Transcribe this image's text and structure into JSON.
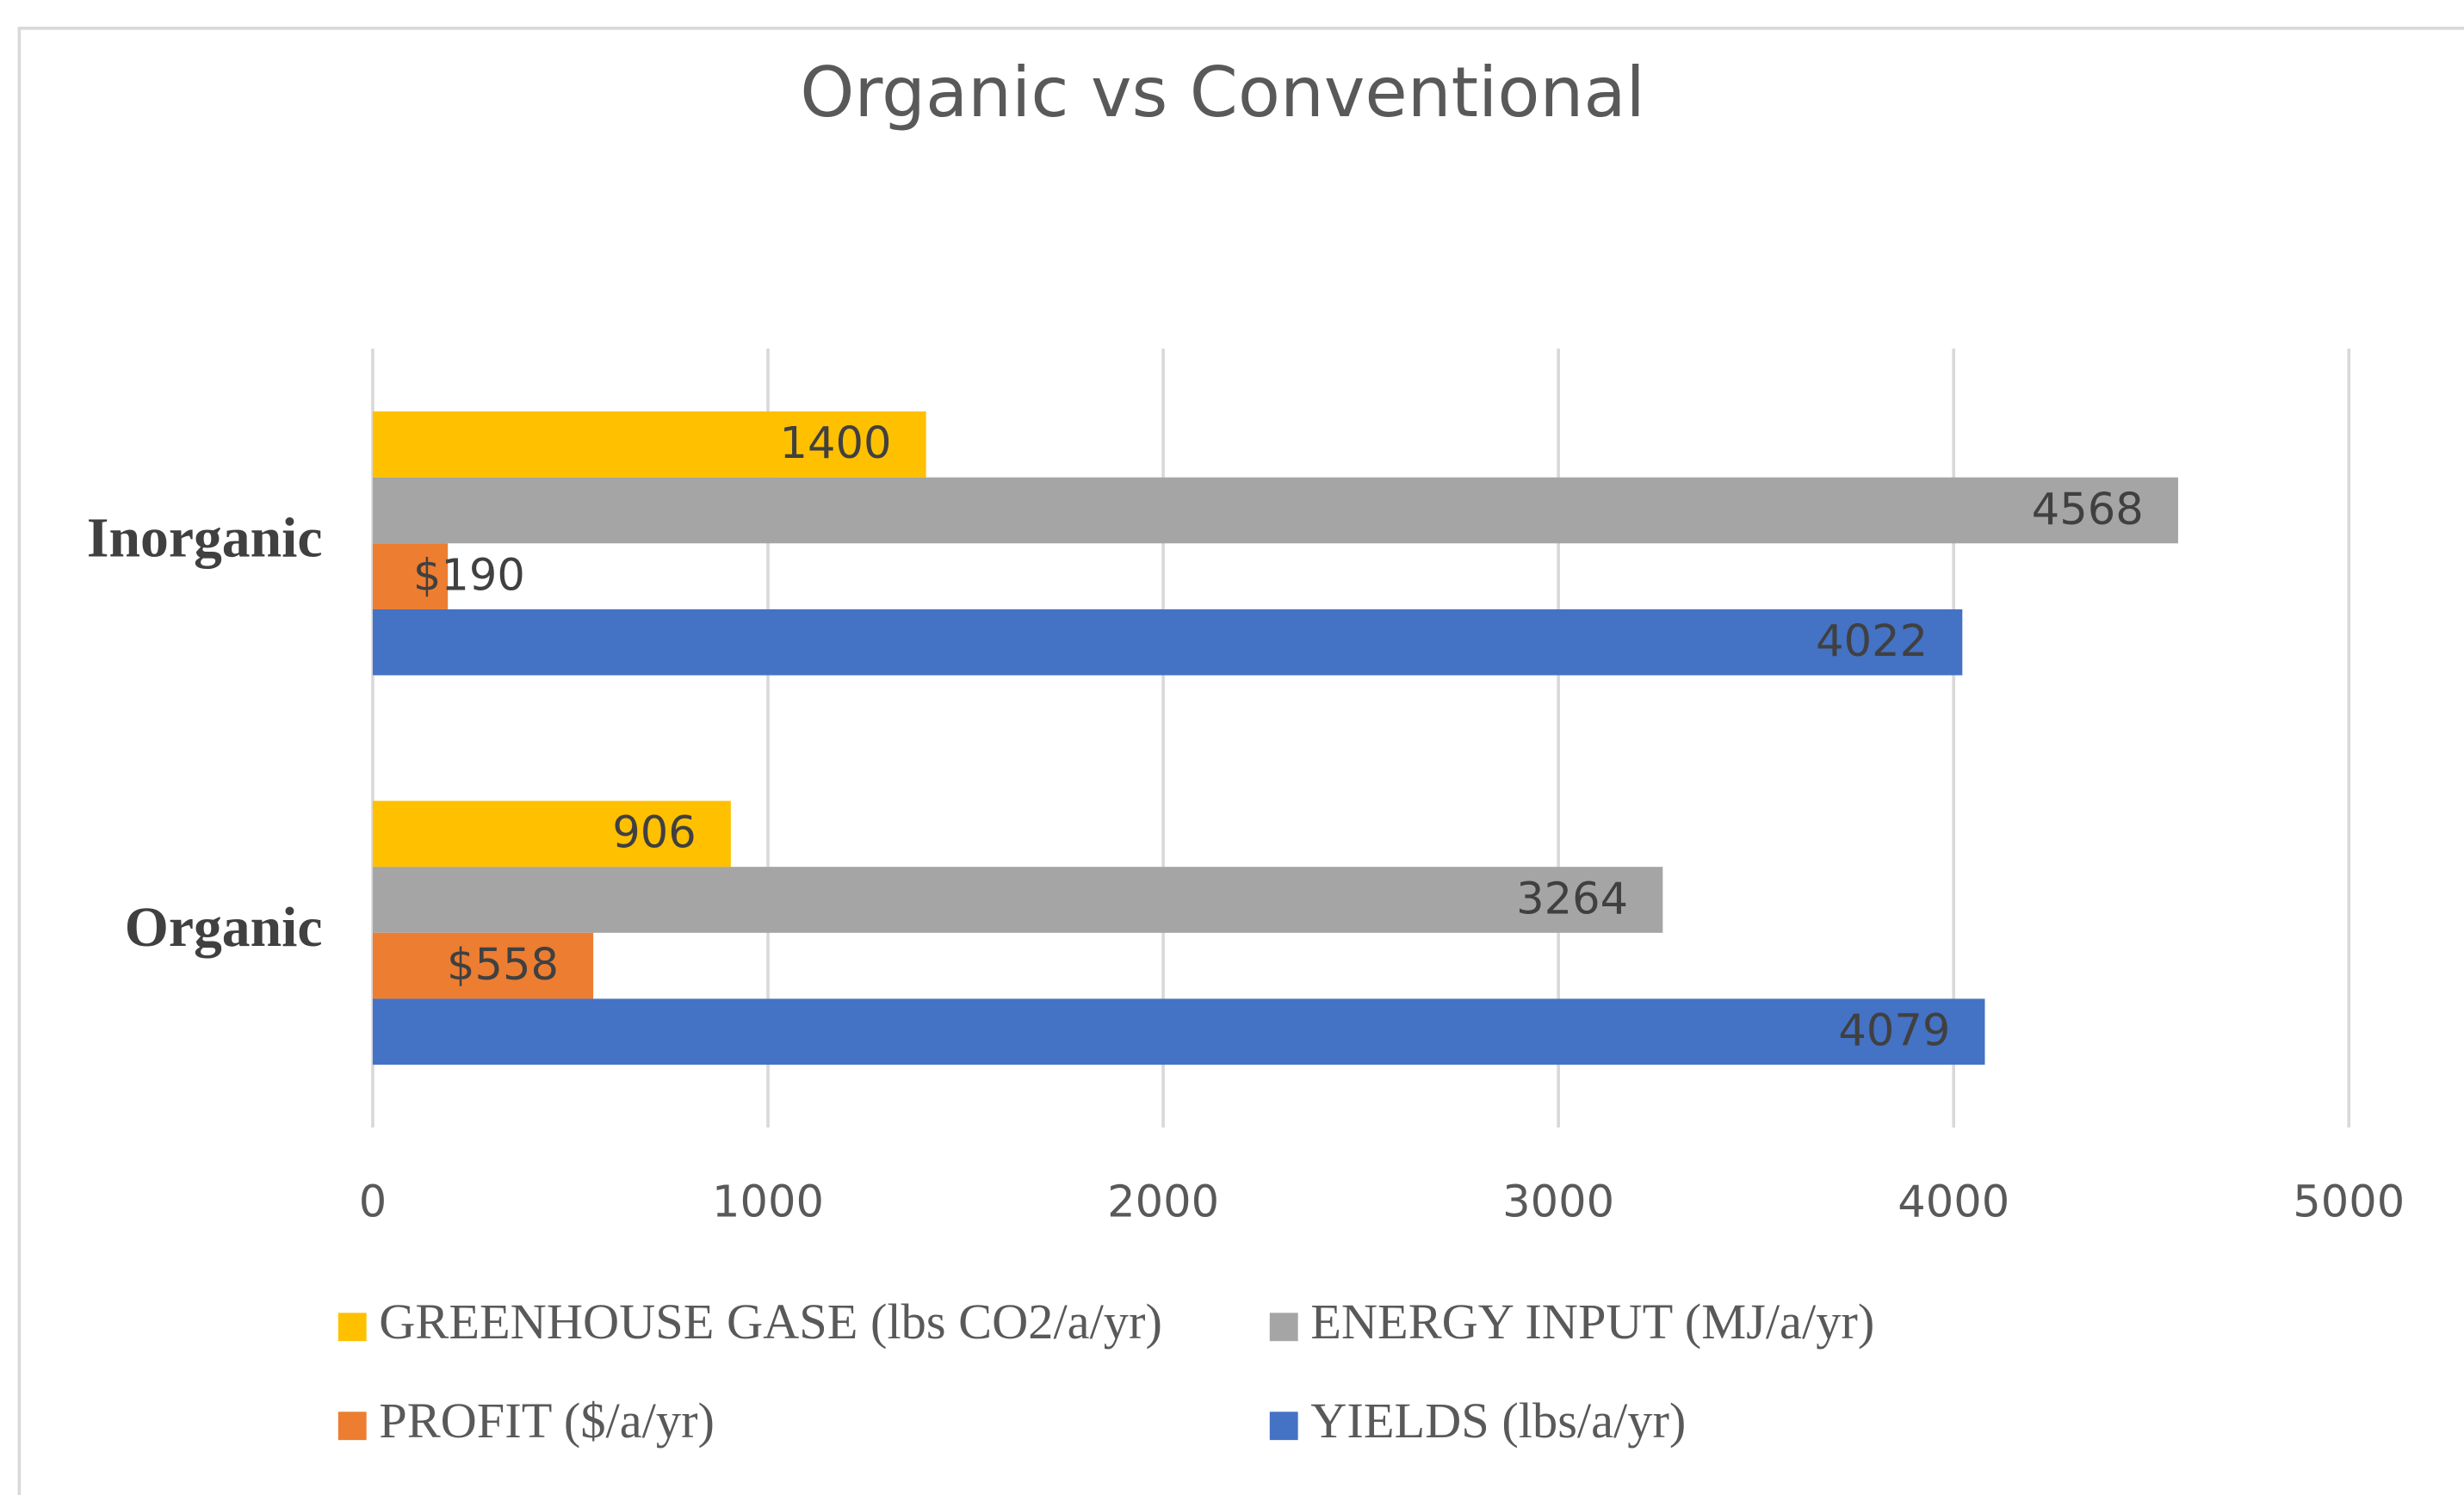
{
  "chart_data": {
    "type": "bar",
    "orientation": "horizontal",
    "title": "Organic vs Conventional",
    "categories": [
      "Organic",
      "Inorganic"
    ],
    "series": [
      {
        "name": "GREENHOUSE GASE (lbs CO2/a/yr)",
        "color": "#ffc000",
        "values": [
          906,
          1400
        ]
      },
      {
        "name": "ENERGY INPUT (MJ/a/yr)",
        "color": "#a5a5a5",
        "values": [
          3264,
          4568
        ]
      },
      {
        "name": "PROFIT ($/a/yr)",
        "color": "#ed7d31",
        "values": [
          558,
          190
        ],
        "value_labels": [
          "$558",
          "$190"
        ]
      },
      {
        "name": "YIELDS (lbs/a/yr)",
        "color": "#4472c4",
        "values": [
          4079,
          4022
        ]
      }
    ],
    "xlim": [
      0,
      5000
    ],
    "xticks": [
      0,
      1000,
      2000,
      3000,
      4000,
      5000
    ],
    "grid": true,
    "legend": "bottom"
  }
}
